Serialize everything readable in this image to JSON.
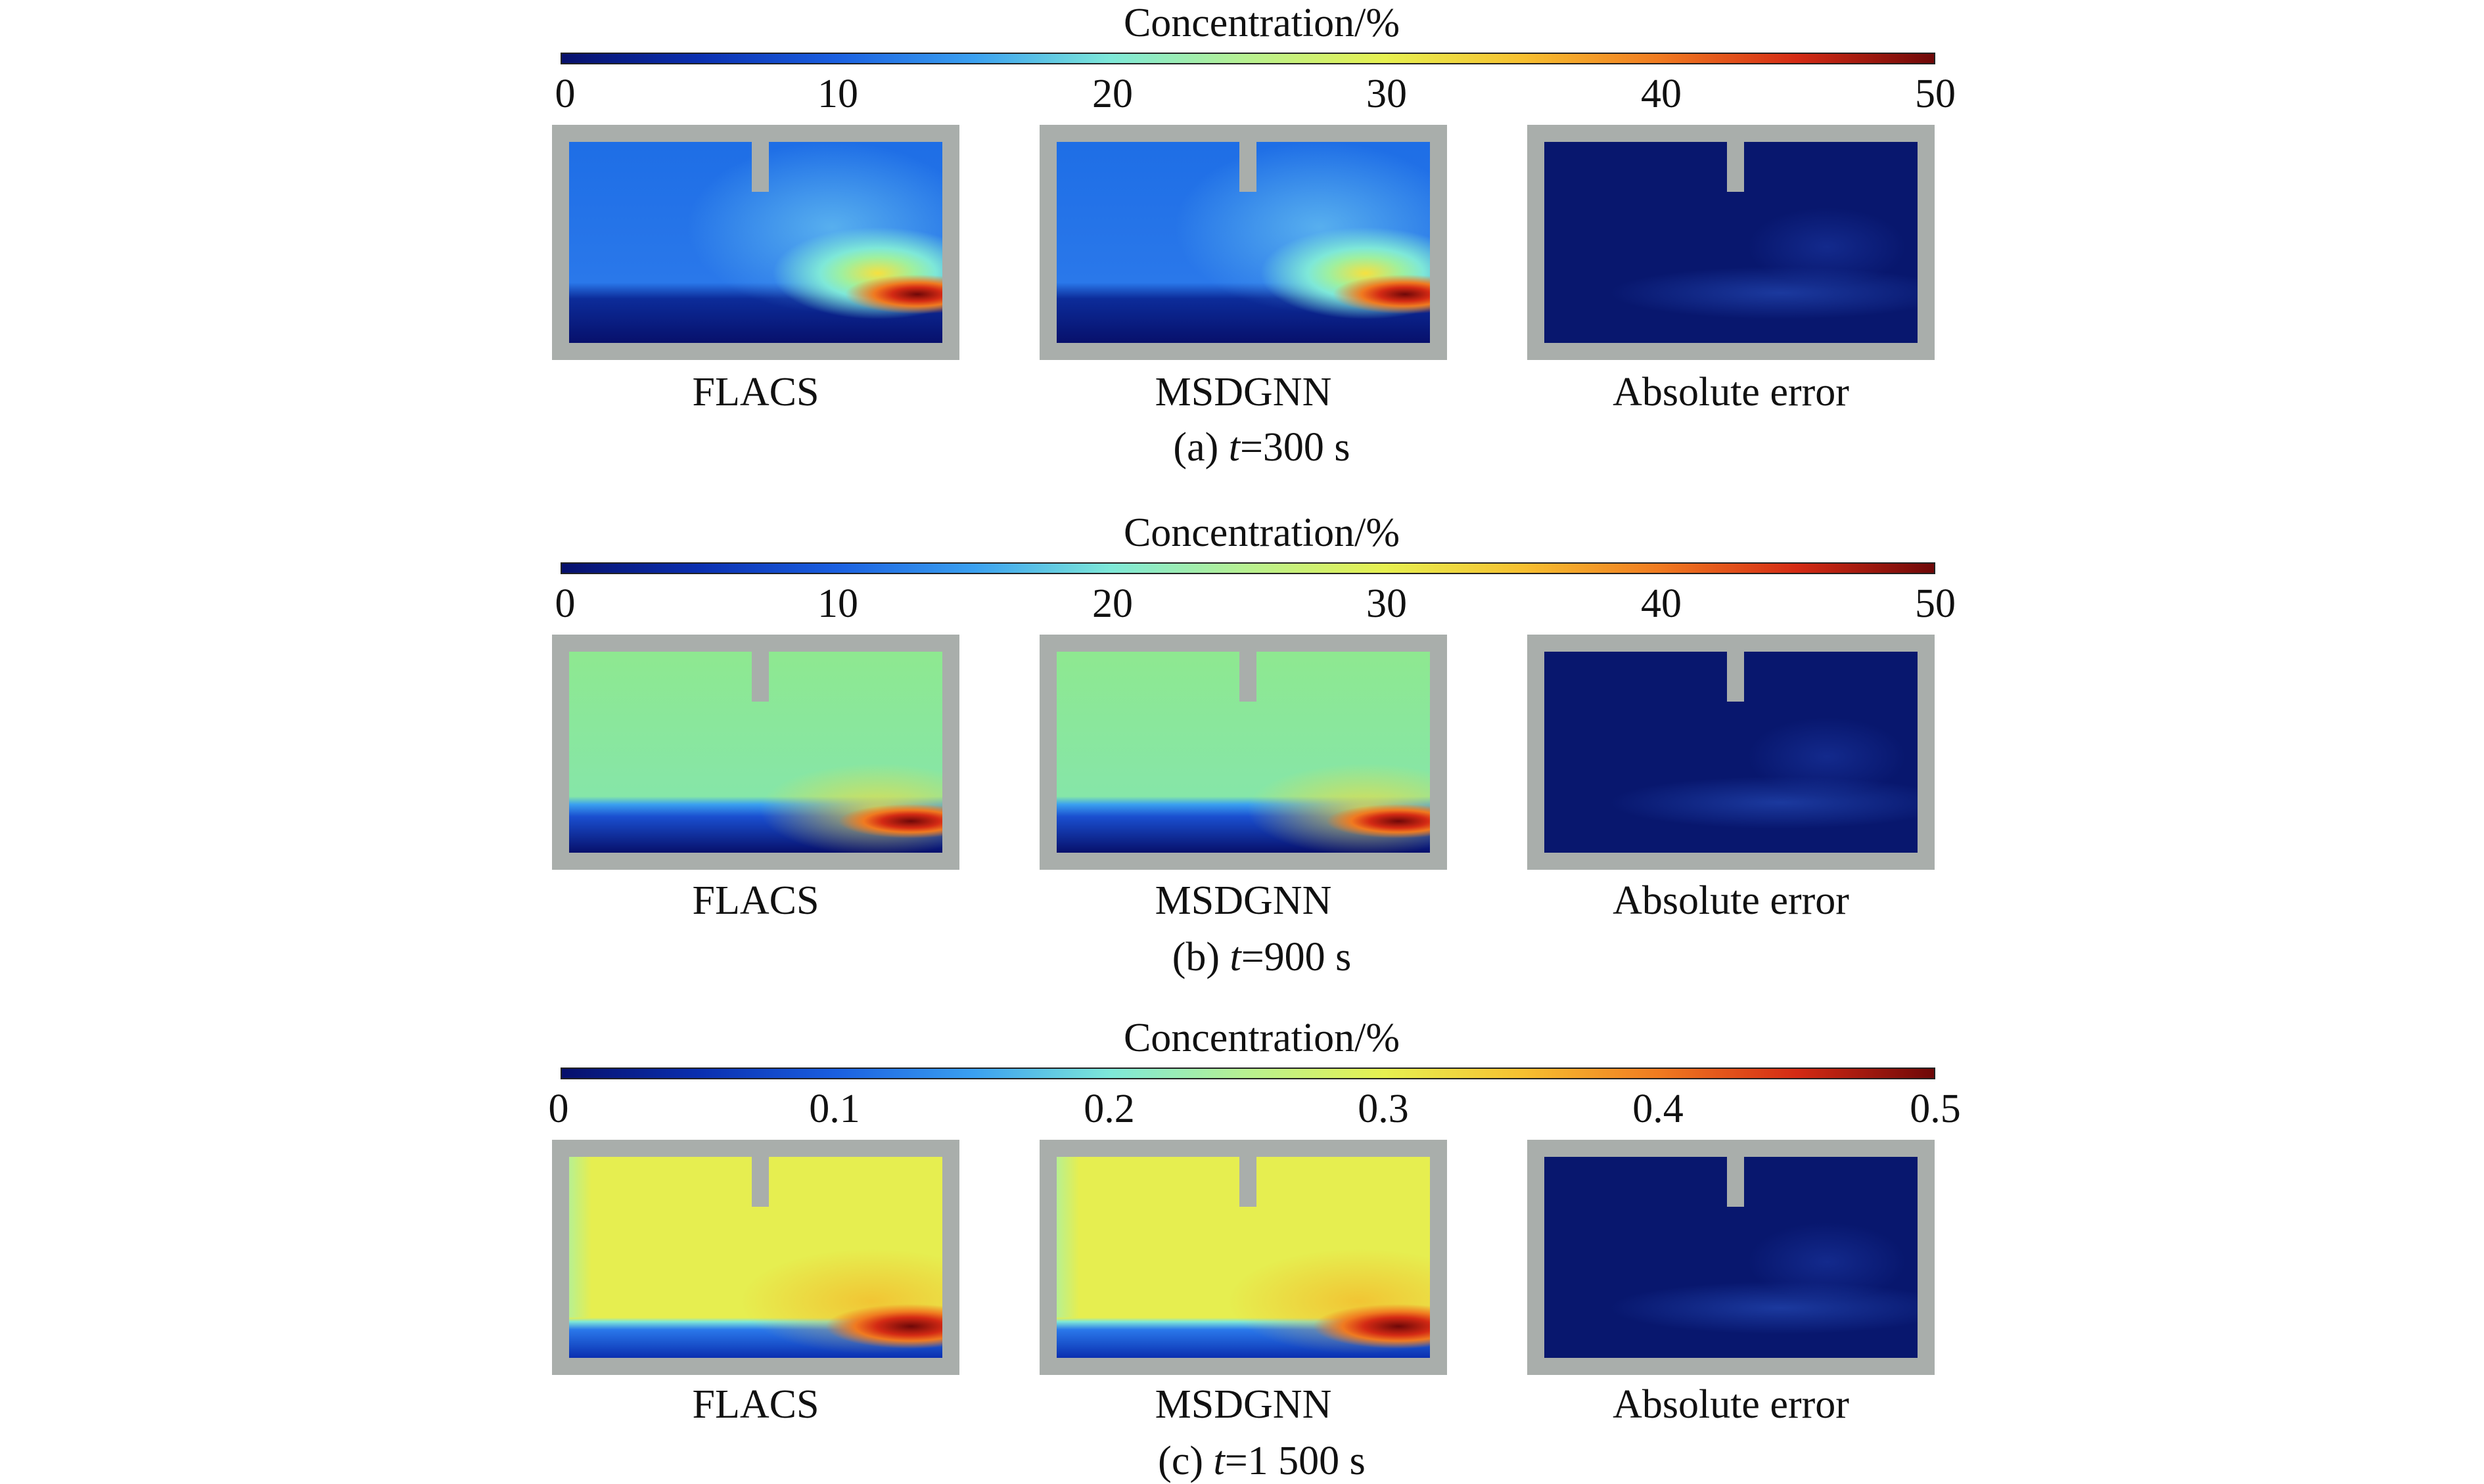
{
  "panels": [
    {
      "colorbar_title": "Concentration/%",
      "ticks": [
        "0",
        "10",
        "20",
        "30",
        "40",
        "50"
      ],
      "labels": [
        "FLACS",
        "MSDGNN",
        "Absolute error"
      ],
      "caption_prefix": "(a) ",
      "caption_var": "t",
      "caption_suffix": "=300 s"
    },
    {
      "colorbar_title": "Concentration/%",
      "ticks": [
        "0",
        "10",
        "20",
        "30",
        "40",
        "50"
      ],
      "labels": [
        "FLACS",
        "MSDGNN",
        "Absolute error"
      ],
      "caption_prefix": "(b) ",
      "caption_var": "t",
      "caption_suffix": "=900 s"
    },
    {
      "colorbar_title": "Concentration/%",
      "ticks": [
        "0",
        "0.1",
        "0.2",
        "0.3",
        "0.4",
        "0.5"
      ],
      "labels": [
        "FLACS",
        "MSDGNN",
        "Absolute error"
      ],
      "caption_prefix": "(c) ",
      "caption_var": "t",
      "caption_suffix": "=1 500 s"
    }
  ]
}
